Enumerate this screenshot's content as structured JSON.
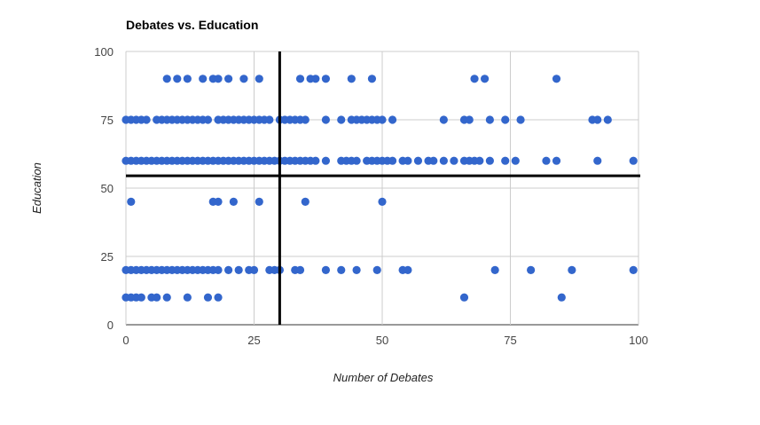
{
  "chart_data": {
    "type": "scatter",
    "title": "Debates vs. Education",
    "xlabel": "Number of Debates",
    "ylabel": "Education",
    "xlim": [
      0,
      100
    ],
    "ylim": [
      0,
      100
    ],
    "xticks": [
      0,
      25,
      50,
      75,
      100
    ],
    "yticks": [
      0,
      25,
      50,
      75,
      100
    ],
    "grid": true,
    "legend": "none",
    "point_color": "#3366cc",
    "reference_lines": {
      "vertical_x": 30,
      "horizontal_y": 54.5,
      "color": "#000000"
    },
    "points": [
      [
        8,
        90
      ],
      [
        10,
        90
      ],
      [
        12,
        90
      ],
      [
        15,
        90
      ],
      [
        17,
        90
      ],
      [
        18,
        90
      ],
      [
        20,
        90
      ],
      [
        23,
        90
      ],
      [
        26,
        90
      ],
      [
        34,
        90
      ],
      [
        36,
        90
      ],
      [
        37,
        90
      ],
      [
        39,
        90
      ],
      [
        44,
        90
      ],
      [
        48,
        90
      ],
      [
        68,
        90
      ],
      [
        70,
        90
      ],
      [
        84,
        90
      ],
      [
        0,
        75
      ],
      [
        1,
        75
      ],
      [
        2,
        75
      ],
      [
        3,
        75
      ],
      [
        4,
        75
      ],
      [
        6,
        75
      ],
      [
        7,
        75
      ],
      [
        8,
        75
      ],
      [
        9,
        75
      ],
      [
        10,
        75
      ],
      [
        11,
        75
      ],
      [
        12,
        75
      ],
      [
        13,
        75
      ],
      [
        14,
        75
      ],
      [
        15,
        75
      ],
      [
        16,
        75
      ],
      [
        18,
        75
      ],
      [
        19,
        75
      ],
      [
        20,
        75
      ],
      [
        21,
        75
      ],
      [
        22,
        75
      ],
      [
        23,
        75
      ],
      [
        24,
        75
      ],
      [
        25,
        75
      ],
      [
        26,
        75
      ],
      [
        27,
        75
      ],
      [
        28,
        75
      ],
      [
        30,
        75
      ],
      [
        31,
        75
      ],
      [
        32,
        75
      ],
      [
        33,
        75
      ],
      [
        34,
        75
      ],
      [
        35,
        75
      ],
      [
        39,
        75
      ],
      [
        42,
        75
      ],
      [
        44,
        75
      ],
      [
        45,
        75
      ],
      [
        46,
        75
      ],
      [
        47,
        75
      ],
      [
        48,
        75
      ],
      [
        49,
        75
      ],
      [
        50,
        75
      ],
      [
        52,
        75
      ],
      [
        62,
        75
      ],
      [
        66,
        75
      ],
      [
        67,
        75
      ],
      [
        71,
        75
      ],
      [
        74,
        75
      ],
      [
        77,
        75
      ],
      [
        91,
        75
      ],
      [
        92,
        75
      ],
      [
        94,
        75
      ],
      [
        0,
        60
      ],
      [
        1,
        60
      ],
      [
        2,
        60
      ],
      [
        3,
        60
      ],
      [
        4,
        60
      ],
      [
        5,
        60
      ],
      [
        6,
        60
      ],
      [
        7,
        60
      ],
      [
        8,
        60
      ],
      [
        9,
        60
      ],
      [
        10,
        60
      ],
      [
        11,
        60
      ],
      [
        12,
        60
      ],
      [
        13,
        60
      ],
      [
        14,
        60
      ],
      [
        15,
        60
      ],
      [
        16,
        60
      ],
      [
        17,
        60
      ],
      [
        18,
        60
      ],
      [
        19,
        60
      ],
      [
        20,
        60
      ],
      [
        21,
        60
      ],
      [
        22,
        60
      ],
      [
        23,
        60
      ],
      [
        24,
        60
      ],
      [
        25,
        60
      ],
      [
        26,
        60
      ],
      [
        27,
        60
      ],
      [
        28,
        60
      ],
      [
        29,
        60
      ],
      [
        30,
        60
      ],
      [
        31,
        60
      ],
      [
        32,
        60
      ],
      [
        33,
        60
      ],
      [
        34,
        60
      ],
      [
        35,
        60
      ],
      [
        36,
        60
      ],
      [
        37,
        60
      ],
      [
        39,
        60
      ],
      [
        42,
        60
      ],
      [
        43,
        60
      ],
      [
        44,
        60
      ],
      [
        45,
        60
      ],
      [
        47,
        60
      ],
      [
        48,
        60
      ],
      [
        49,
        60
      ],
      [
        50,
        60
      ],
      [
        51,
        60
      ],
      [
        52,
        60
      ],
      [
        54,
        60
      ],
      [
        55,
        60
      ],
      [
        57,
        60
      ],
      [
        59,
        60
      ],
      [
        60,
        60
      ],
      [
        62,
        60
      ],
      [
        64,
        60
      ],
      [
        66,
        60
      ],
      [
        67,
        60
      ],
      [
        68,
        60
      ],
      [
        69,
        60
      ],
      [
        71,
        60
      ],
      [
        74,
        60
      ],
      [
        76,
        60
      ],
      [
        82,
        60
      ],
      [
        84,
        60
      ],
      [
        92,
        60
      ],
      [
        99,
        60
      ],
      [
        1,
        45
      ],
      [
        17,
        45
      ],
      [
        18,
        45
      ],
      [
        21,
        45
      ],
      [
        26,
        45
      ],
      [
        35,
        45
      ],
      [
        50,
        45
      ],
      [
        0,
        20
      ],
      [
        1,
        20
      ],
      [
        2,
        20
      ],
      [
        3,
        20
      ],
      [
        4,
        20
      ],
      [
        5,
        20
      ],
      [
        6,
        20
      ],
      [
        7,
        20
      ],
      [
        8,
        20
      ],
      [
        9,
        20
      ],
      [
        10,
        20
      ],
      [
        11,
        20
      ],
      [
        12,
        20
      ],
      [
        13,
        20
      ],
      [
        14,
        20
      ],
      [
        15,
        20
      ],
      [
        16,
        20
      ],
      [
        17,
        20
      ],
      [
        18,
        20
      ],
      [
        20,
        20
      ],
      [
        22,
        20
      ],
      [
        24,
        20
      ],
      [
        25,
        20
      ],
      [
        28,
        20
      ],
      [
        29,
        20
      ],
      [
        30,
        20
      ],
      [
        33,
        20
      ],
      [
        34,
        20
      ],
      [
        39,
        20
      ],
      [
        42,
        20
      ],
      [
        45,
        20
      ],
      [
        49,
        20
      ],
      [
        54,
        20
      ],
      [
        55,
        20
      ],
      [
        72,
        20
      ],
      [
        79,
        20
      ],
      [
        87,
        20
      ],
      [
        99,
        20
      ],
      [
        0,
        10
      ],
      [
        1,
        10
      ],
      [
        2,
        10
      ],
      [
        3,
        10
      ],
      [
        5,
        10
      ],
      [
        6,
        10
      ],
      [
        8,
        10
      ],
      [
        12,
        10
      ],
      [
        16,
        10
      ],
      [
        18,
        10
      ],
      [
        66,
        10
      ],
      [
        85,
        10
      ]
    ]
  }
}
